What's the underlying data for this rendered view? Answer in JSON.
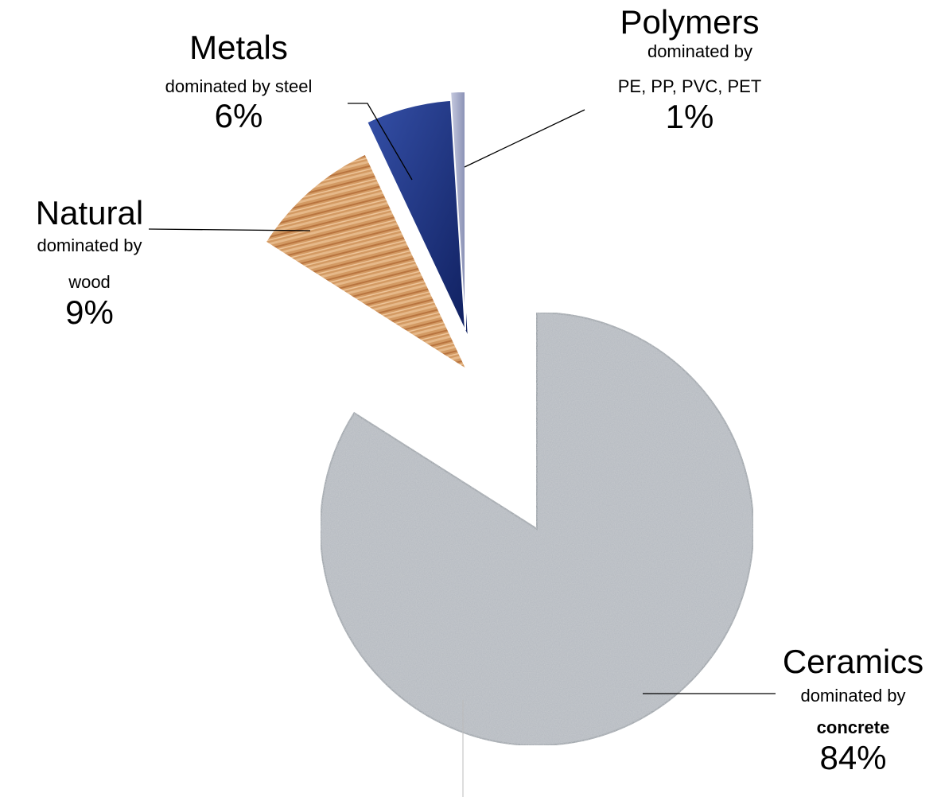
{
  "chart_data": {
    "type": "pie",
    "title": "",
    "slices": [
      {
        "name": "Ceramics",
        "line1": "dominated by",
        "line2": "concrete",
        "value": 84,
        "label": "84%",
        "color": "#b7bcc2"
      },
      {
        "name": "Natural",
        "line1": "dominated by",
        "line2": "wood",
        "value": 9,
        "label": "9%",
        "color": "#c98d5b"
      },
      {
        "name": "Metals",
        "line1": "dominated by steel",
        "line2": "",
        "value": 6,
        "label": "6%",
        "color": "#1a2d7a"
      },
      {
        "name": "Polymers",
        "line1": "dominated by",
        "line2": "PE, PP, PVC, PET",
        "value": 1,
        "label": "1%",
        "color": "#a6acc8"
      }
    ],
    "exploded": true,
    "legend": "none"
  }
}
